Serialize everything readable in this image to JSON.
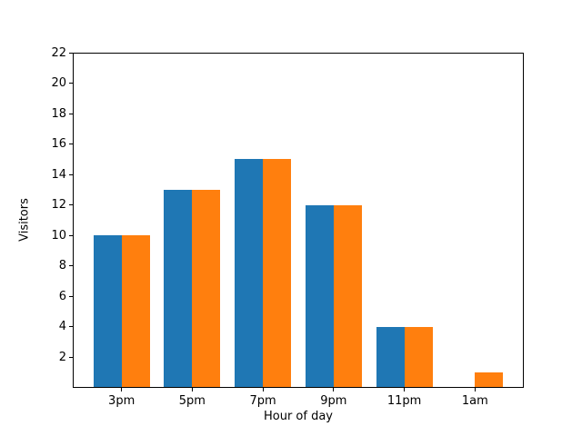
{
  "chart_data": {
    "type": "bar",
    "title": "",
    "xlabel": "Hour of day",
    "ylabel": "Visitors",
    "categories": [
      "3pm",
      "5pm",
      "7pm",
      "9pm",
      "11pm",
      "1am"
    ],
    "series": [
      {
        "name": "blue",
        "color": "#1f77b4",
        "values": [
          10,
          13,
          15,
          12,
          4,
          0
        ]
      },
      {
        "name": "orange",
        "color": "#ff7f0e",
        "values": [
          10,
          13,
          15,
          12,
          4,
          1
        ]
      }
    ],
    "ylim": [
      0,
      22
    ],
    "yticks": [
      2,
      4,
      6,
      8,
      10,
      12,
      14,
      16,
      18,
      20,
      22
    ],
    "grid": false,
    "legend": "none",
    "background": "#ffffff",
    "axis_color": "#000000"
  }
}
